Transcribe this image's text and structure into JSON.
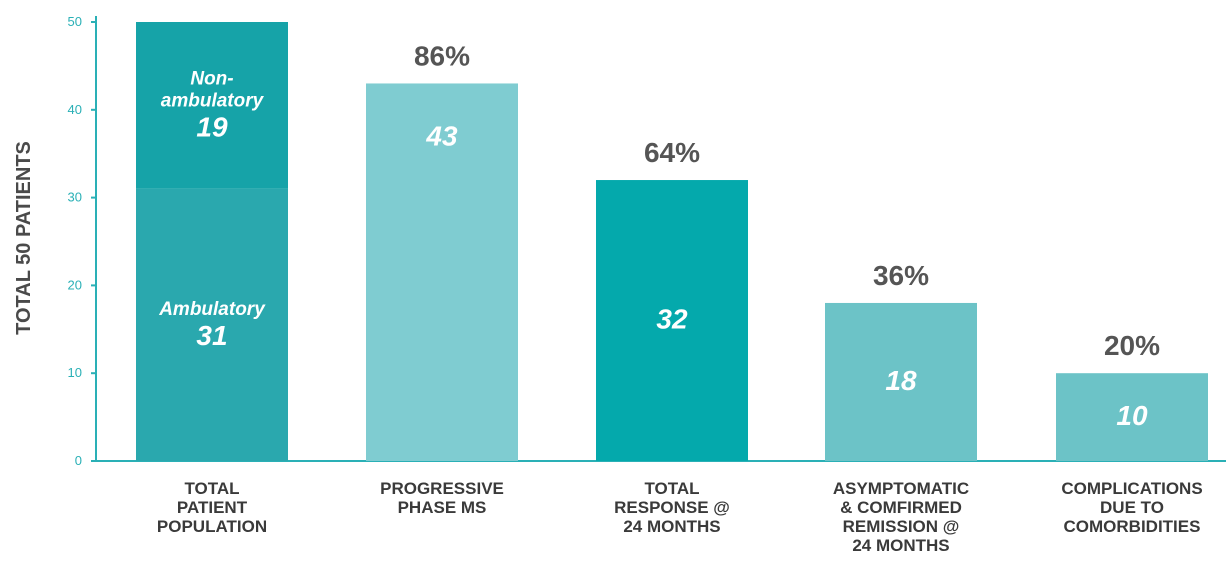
{
  "chart_data": {
    "type": "bar",
    "ylabel": "TOTAL 50 PATIENTS",
    "ylim": [
      0,
      50
    ],
    "yticks": [
      "0",
      "10",
      "20",
      "30",
      "40",
      "50"
    ],
    "categories": [
      [
        "TOTAL",
        "PATIENT",
        "POPULATION"
      ],
      [
        "PROGRESSIVE",
        "PHASE MS"
      ],
      [
        "TOTAL",
        "RESPONSE @",
        "24 MONTHS"
      ],
      [
        "ASYMPTOMATIC",
        "& COMFIRMED",
        "REMISSION @",
        "24 MONTHS"
      ],
      [
        "COMPLICATIONS",
        "DUE TO",
        "COMORBIDITIES"
      ]
    ],
    "values": [
      50,
      43,
      32,
      18,
      10
    ],
    "value_labels": [
      "",
      "43",
      "32",
      "18",
      "10"
    ],
    "percent_labels": [
      "",
      "86%",
      "64%",
      "36%",
      "20%"
    ],
    "stack": {
      "segments": [
        {
          "name_lines": [
            "Ambulatory"
          ],
          "value": 31,
          "label": "31",
          "color": "#2aa8ae"
        },
        {
          "name_lines": [
            "Non-",
            "ambulatory"
          ],
          "value": 19,
          "label": "19",
          "color": "#16a3a8"
        }
      ]
    },
    "colors": [
      "#1aa6ab",
      "#7fccd1",
      "#04a9ac",
      "#6cc3c7",
      "#6cc3c7"
    ],
    "axis_color": "#2ab0b6",
    "grid": false
  }
}
